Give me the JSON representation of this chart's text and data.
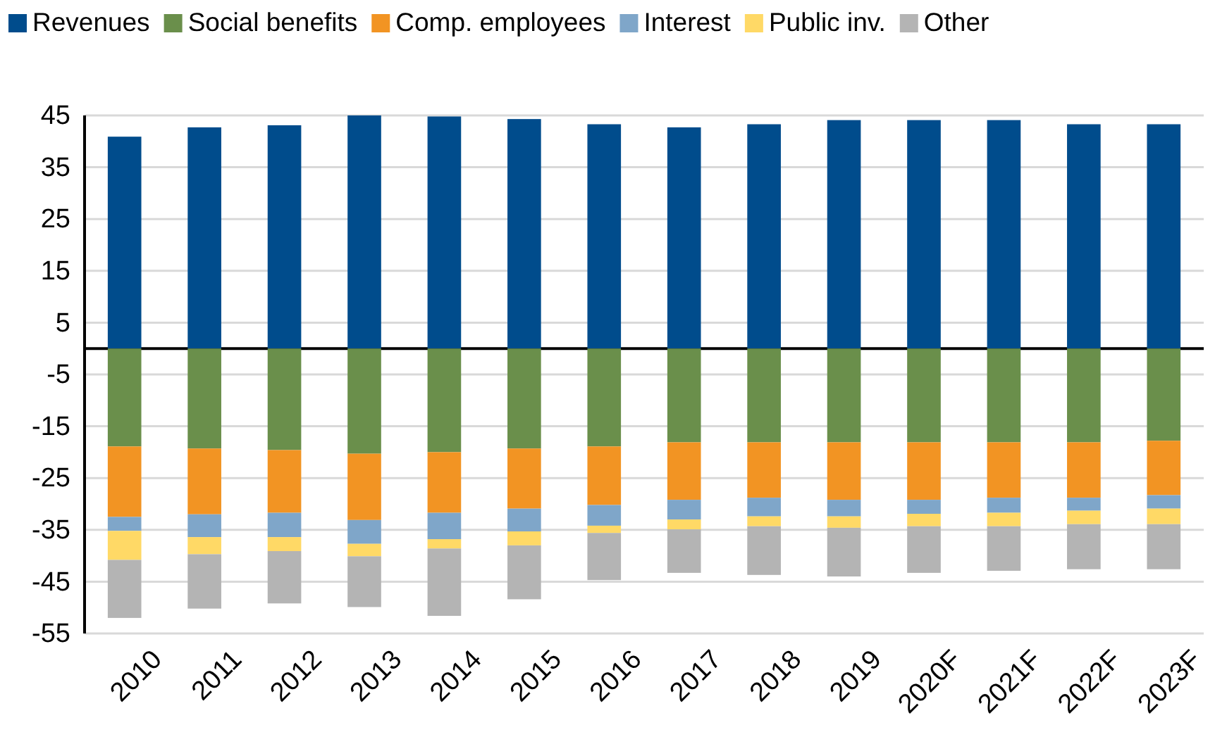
{
  "chart_data": {
    "type": "bar",
    "stacked": true,
    "categories": [
      "2010",
      "2011",
      "2012",
      "2013",
      "2014",
      "2015",
      "2016",
      "2017",
      "2018",
      "2019",
      "2020F",
      "2021F",
      "2022F",
      "2023F"
    ],
    "series": [
      {
        "name": "Revenues",
        "color": "#004c8c",
        "values": [
          40.9,
          42.7,
          43.1,
          45.0,
          44.8,
          44.3,
          43.3,
          42.7,
          43.3,
          44.1,
          44.1,
          44.1,
          43.3,
          43.3
        ]
      },
      {
        "name": "Social benefits",
        "color": "#6a8f4b",
        "values": [
          -18.9,
          -19.3,
          -19.6,
          -20.3,
          -20.0,
          -19.3,
          -18.9,
          -18.1,
          -18.1,
          -18.1,
          -18.1,
          -18.1,
          -18.1,
          -17.8
        ]
      },
      {
        "name": "Comp. employees",
        "color": "#f29423",
        "values": [
          -13.6,
          -12.7,
          -12.1,
          -12.8,
          -11.7,
          -11.6,
          -11.3,
          -11.1,
          -10.7,
          -11.1,
          -11.1,
          -10.7,
          -10.7,
          -10.5
        ]
      },
      {
        "name": "Interest",
        "color": "#7fa6c9",
        "values": [
          -2.7,
          -4.4,
          -4.7,
          -4.6,
          -5.1,
          -4.4,
          -4.0,
          -3.8,
          -3.6,
          -3.2,
          -2.7,
          -2.9,
          -2.5,
          -2.6
        ]
      },
      {
        "name": "Public inv.",
        "color": "#ffd966",
        "values": [
          -5.6,
          -3.3,
          -2.7,
          -2.4,
          -1.8,
          -2.7,
          -1.4,
          -1.9,
          -1.9,
          -2.2,
          -2.4,
          -2.6,
          -2.6,
          -3.0
        ]
      },
      {
        "name": "Other",
        "color": "#b4b4b4",
        "values": [
          -11.2,
          -10.5,
          -10.1,
          -9.8,
          -13.0,
          -10.4,
          -9.1,
          -8.4,
          -9.4,
          -9.4,
          -9.0,
          -8.6,
          -8.7,
          -8.7
        ]
      }
    ],
    "ylim": [
      -55,
      45
    ],
    "yticks": [
      45,
      35,
      25,
      15,
      5,
      -5,
      -15,
      -25,
      -35,
      -45,
      -55
    ],
    "grid": "y",
    "legend": "top"
  }
}
